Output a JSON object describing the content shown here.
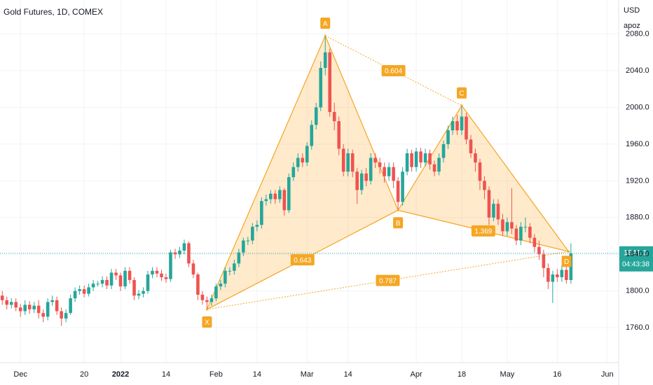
{
  "chart_data": {
    "type": "candlestick",
    "title": "Gold Futures, 1D, COMEX",
    "currency": "USD",
    "user": "apoz",
    "up_color": "#26a69a",
    "down_color": "#ef5350",
    "pattern_color": "#f5a623",
    "xlim": [
      -0.5,
      135.5
    ],
    "ylim": [
      1722,
      2117
    ],
    "yticks": [
      {
        "value": 1760,
        "label": "1760.0"
      },
      {
        "value": 1800,
        "label": "1800.0"
      },
      {
        "value": 1840,
        "label": "1840.0"
      },
      {
        "value": 1880,
        "label": "1880.0"
      },
      {
        "value": 1920,
        "label": "1920.0"
      },
      {
        "value": 1960,
        "label": "1960.0"
      },
      {
        "value": 2000,
        "label": "2000.0"
      },
      {
        "value": 2040,
        "label": "2040.0"
      },
      {
        "value": 2080,
        "label": "2080.0"
      }
    ],
    "xticks": [
      {
        "value": 4,
        "label": "Dec"
      },
      {
        "value": 18,
        "label": "20"
      },
      {
        "value": 26,
        "label": "2022"
      },
      {
        "value": 36,
        "label": "14"
      },
      {
        "value": 47,
        "label": "Feb"
      },
      {
        "value": 56,
        "label": "14"
      },
      {
        "value": 67,
        "label": "Mar"
      },
      {
        "value": 76,
        "label": "14"
      },
      {
        "value": 91,
        "label": "Apr"
      },
      {
        "value": 101,
        "label": "18"
      },
      {
        "value": 111,
        "label": "May"
      },
      {
        "value": 122,
        "label": "16"
      },
      {
        "value": 133,
        "label": "Jun"
      }
    ],
    "open": [
      1795,
      1790,
      1785,
      1788,
      1782,
      1778,
      1785,
      1780,
      1784,
      1776,
      1772,
      1788,
      1790,
      1778,
      1770,
      1776,
      1792,
      1800,
      1802,
      1797,
      1804,
      1808,
      1808,
      1812,
      1806,
      1820,
      1817,
      1805,
      1822,
      1812,
      1795,
      1797,
      1800,
      1818,
      1822,
      1819,
      1815,
      1813,
      1842,
      1840,
      1844,
      1852,
      1830,
      1818,
      1796,
      1790,
      1788,
      1792,
      1805,
      1808,
      1822,
      1822,
      1830,
      1842,
      1855,
      1855,
      1870,
      1872,
      1898,
      1900,
      1906,
      1900,
      1910,
      1888,
      1924,
      1935,
      1945,
      1940,
      1958,
      1981,
      2000,
      2043,
      2060,
      1995,
      1985,
      1955,
      1930,
      1950,
      1930,
      1910,
      1928,
      1920,
      1945,
      1940,
      1935,
      1925,
      1935,
      1920,
      1897,
      1930,
      1950,
      1935,
      1952,
      1940,
      1950,
      1938,
      1930,
      1945,
      1960,
      1975,
      1985,
      1975,
      1990,
      1965,
      1950,
      1940,
      1920,
      1910,
      1880,
      1895,
      1878,
      1865,
      1875,
      1868,
      1855,
      1870,
      1870,
      1858,
      1848,
      1840,
      1825,
      1810,
      1818,
      1815,
      1823,
      1812
    ],
    "high": [
      1800,
      1794,
      1792,
      1792,
      1786,
      1790,
      1789,
      1788,
      1790,
      1780,
      1792,
      1795,
      1794,
      1782,
      1780,
      1796,
      1804,
      1806,
      1806,
      1808,
      1812,
      1811,
      1816,
      1816,
      1824,
      1824,
      1820,
      1826,
      1826,
      1815,
      1801,
      1804,
      1822,
      1826,
      1826,
      1823,
      1819,
      1845,
      1846,
      1848,
      1856,
      1854,
      1834,
      1820,
      1800,
      1794,
      1796,
      1808,
      1812,
      1826,
      1826,
      1834,
      1846,
      1858,
      1859,
      1874,
      1877,
      1902,
      1905,
      1910,
      1910,
      1914,
      1912,
      1928,
      1940,
      1950,
      1950,
      1962,
      1986,
      2005,
      2050,
      2078,
      2064,
      2005,
      1990,
      1960,
      1955,
      1954,
      1934,
      1932,
      1934,
      1950,
      1950,
      1945,
      1940,
      1940,
      1940,
      1924,
      1935,
      1955,
      1954,
      1956,
      1956,
      1955,
      1954,
      1942,
      1950,
      1964,
      1980,
      1990,
      1992,
      2002,
      1994,
      1970,
      1955,
      1944,
      1925,
      1914,
      1900,
      1900,
      1884,
      1880,
      1912,
      1872,
      1875,
      1880,
      1874,
      1862,
      1855,
      1845,
      1830,
      1822,
      1824,
      1828,
      1828,
      1852
    ],
    "low": [
      1785,
      1780,
      1781,
      1778,
      1772,
      1774,
      1775,
      1776,
      1770,
      1766,
      1768,
      1784,
      1774,
      1762,
      1766,
      1774,
      1788,
      1796,
      1793,
      1794,
      1800,
      1805,
      1804,
      1802,
      1802,
      1812,
      1800,
      1802,
      1808,
      1790,
      1791,
      1793,
      1797,
      1814,
      1815,
      1811,
      1809,
      1810,
      1835,
      1836,
      1840,
      1826,
      1814,
      1790,
      1785,
      1780,
      1784,
      1789,
      1801,
      1804,
      1817,
      1818,
      1826,
      1838,
      1850,
      1851,
      1865,
      1868,
      1893,
      1895,
      1895,
      1896,
      1882,
      1885,
      1920,
      1930,
      1935,
      1936,
      1954,
      1976,
      1996,
      2035,
      1990,
      1975,
      1948,
      1925,
      1925,
      1924,
      1895,
      1905,
      1914,
      1916,
      1934,
      1928,
      1918,
      1920,
      1912,
      1888,
      1893,
      1926,
      1930,
      1930,
      1934,
      1936,
      1932,
      1925,
      1926,
      1940,
      1955,
      1970,
      1970,
      1970,
      1960,
      1945,
      1930,
      1910,
      1900,
      1872,
      1876,
      1872,
      1860,
      1860,
      1862,
      1850,
      1850,
      1864,
      1852,
      1842,
      1834,
      1815,
      1802,
      1787,
      1810,
      1810,
      1808,
      1808
    ],
    "close": [
      1790,
      1785,
      1788,
      1782,
      1778,
      1785,
      1780,
      1784,
      1776,
      1772,
      1788,
      1790,
      1778,
      1770,
      1776,
      1792,
      1800,
      1802,
      1797,
      1804,
      1808,
      1808,
      1812,
      1806,
      1820,
      1817,
      1805,
      1822,
      1812,
      1795,
      1797,
      1800,
      1818,
      1822,
      1819,
      1815,
      1813,
      1842,
      1840,
      1844,
      1852,
      1830,
      1818,
      1796,
      1790,
      1788,
      1792,
      1805,
      1808,
      1822,
      1822,
      1830,
      1842,
      1855,
      1855,
      1870,
      1872,
      1898,
      1900,
      1906,
      1900,
      1910,
      1888,
      1924,
      1935,
      1945,
      1940,
      1958,
      1981,
      2000,
      2043,
      2060,
      1995,
      1985,
      1955,
      1930,
      1950,
      1930,
      1910,
      1928,
      1920,
      1945,
      1940,
      1935,
      1925,
      1935,
      1920,
      1897,
      1930,
      1950,
      1935,
      1952,
      1940,
      1950,
      1938,
      1930,
      1945,
      1960,
      1975,
      1985,
      1975,
      1990,
      1965,
      1950,
      1940,
      1920,
      1910,
      1880,
      1895,
      1878,
      1865,
      1875,
      1868,
      1855,
      1870,
      1870,
      1858,
      1848,
      1840,
      1825,
      1810,
      1818,
      1815,
      1823,
      1812,
      1841
    ],
    "pattern": {
      "points": [
        {
          "label": "X",
          "x": 45,
          "y": 1780
        },
        {
          "label": "A",
          "x": 71,
          "y": 2078
        },
        {
          "label": "B",
          "x": 87,
          "y": 1888
        },
        {
          "label": "C",
          "x": 101,
          "y": 2002
        },
        {
          "label": "D",
          "x": 124.5,
          "y": 1843
        }
      ],
      "ratios": [
        0.643,
        0.604,
        1.369,
        0.787
      ]
    },
    "last_price": 1841.1,
    "countdown": "04:43:38"
  }
}
